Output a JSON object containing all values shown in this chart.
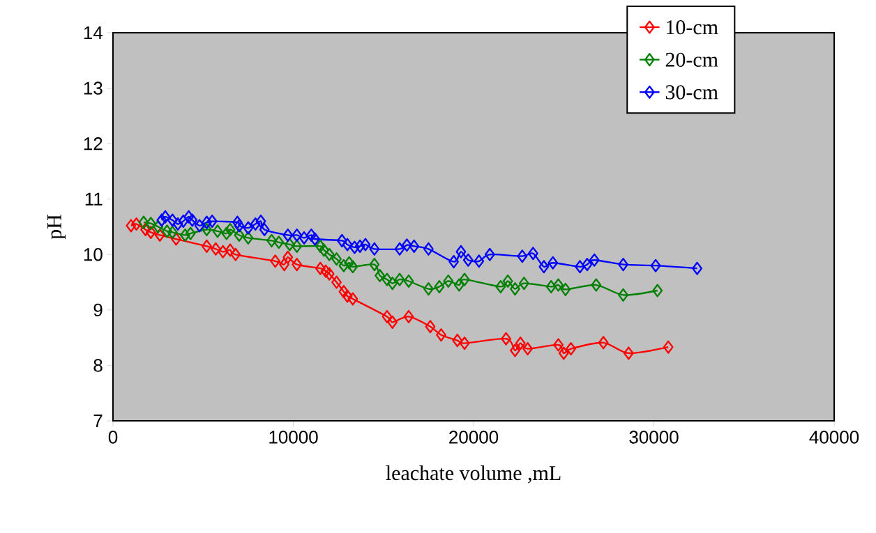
{
  "chart_data": {
    "type": "line",
    "xlabel": "leachate volume ,mL",
    "ylabel": "pH",
    "xlim": [
      0,
      40000
    ],
    "ylim": [
      7,
      14
    ],
    "xticks": [
      0,
      10000,
      20000,
      30000,
      40000
    ],
    "yticks": [
      7,
      8,
      9,
      10,
      11,
      12,
      13,
      14
    ],
    "legend": "top right",
    "marker": "diamond",
    "line_style": "solid",
    "series": [
      {
        "name": "10-cm",
        "color": "#ff0000",
        "x": [
          1000,
          1300,
          1800,
          2100,
          2600,
          3500,
          5200,
          5700,
          6100,
          6500,
          6800,
          9000,
          9500,
          9700,
          10200,
          11500,
          11800,
          12000,
          12400,
          12800,
          13000,
          13300,
          15200,
          15500,
          16400,
          17600,
          18200,
          19100,
          19500,
          21800,
          22300,
          22600,
          23000,
          24700,
          25000,
          25400,
          27200,
          28600,
          30800
        ],
        "values": [
          10.52,
          10.55,
          10.45,
          10.4,
          10.35,
          10.28,
          10.15,
          10.1,
          10.05,
          10.08,
          10.0,
          9.88,
          9.82,
          9.95,
          9.82,
          9.75,
          9.7,
          9.65,
          9.5,
          9.33,
          9.25,
          9.2,
          8.88,
          8.78,
          8.88,
          8.7,
          8.55,
          8.45,
          8.4,
          8.48,
          8.27,
          8.4,
          8.3,
          8.37,
          8.22,
          8.3,
          8.41,
          8.22,
          8.33
        ]
      },
      {
        "name": "20-cm",
        "color": "#008000",
        "x": [
          1700,
          2100,
          2500,
          3000,
          3300,
          4000,
          4300,
          5200,
          5800,
          6300,
          6500,
          7000,
          7500,
          8800,
          9200,
          9800,
          10200,
          11500,
          11700,
          12000,
          12400,
          12800,
          13100,
          13300,
          14500,
          14800,
          15200,
          15500,
          15900,
          16400,
          17500,
          18100,
          18600,
          19200,
          19500,
          21500,
          21900,
          22300,
          22800,
          24300,
          24700,
          25100,
          26800,
          28300,
          30200
        ],
        "values": [
          10.58,
          10.56,
          10.5,
          10.42,
          10.4,
          10.35,
          10.38,
          10.45,
          10.42,
          10.38,
          10.45,
          10.35,
          10.3,
          10.25,
          10.22,
          10.18,
          10.15,
          10.15,
          10.08,
          10.0,
          9.92,
          9.8,
          9.85,
          9.78,
          9.82,
          9.62,
          9.55,
          9.48,
          9.55,
          9.52,
          9.38,
          9.42,
          9.52,
          9.45,
          9.55,
          9.42,
          9.52,
          9.38,
          9.48,
          9.42,
          9.45,
          9.37,
          9.45,
          9.27,
          9.35
        ]
      },
      {
        "name": "30-cm",
        "color": "#0000ff",
        "x": [
          2700,
          2900,
          3300,
          3600,
          3900,
          4200,
          4400,
          4800,
          5200,
          5500,
          6900,
          7000,
          7500,
          7900,
          8200,
          8400,
          9700,
          10200,
          10600,
          11000,
          11200,
          12700,
          13000,
          13400,
          13700,
          14000,
          14500,
          15900,
          16300,
          16700,
          17500,
          18900,
          19300,
          19700,
          20300,
          20900,
          22700,
          23300,
          23900,
          24400,
          25900,
          26300,
          26700,
          28300,
          30100,
          32400
        ],
        "values": [
          10.62,
          10.68,
          10.62,
          10.55,
          10.6,
          10.68,
          10.62,
          10.52,
          10.58,
          10.6,
          10.58,
          10.52,
          10.48,
          10.55,
          10.6,
          10.45,
          10.35,
          10.35,
          10.3,
          10.35,
          10.28,
          10.25,
          10.18,
          10.13,
          10.15,
          10.18,
          10.1,
          10.1,
          10.17,
          10.15,
          10.1,
          9.87,
          10.05,
          9.9,
          9.88,
          10.0,
          9.97,
          10.02,
          9.78,
          9.85,
          9.78,
          9.82,
          9.9,
          9.82,
          9.8,
          9.75
        ]
      }
    ]
  }
}
